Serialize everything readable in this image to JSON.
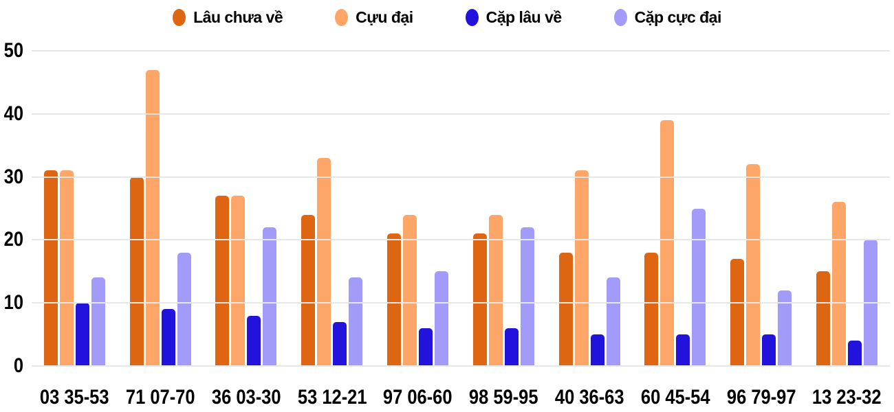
{
  "chart_data": {
    "type": "bar",
    "title": "",
    "categories": [
      "03 35-53",
      "71 07-70",
      "36 03-30",
      "53 12-21",
      "97 06-60",
      "98 59-95",
      "40 36-63",
      "60 45-54",
      "96 79-97",
      "13 23-32"
    ],
    "series": [
      {
        "name": "Lâu chưa về",
        "color": "#DE6512",
        "values": [
          31,
          30,
          27,
          24,
          21,
          21,
          18,
          18,
          17,
          15
        ]
      },
      {
        "name": "Cựu đại",
        "color": "#FDA667",
        "values": [
          31,
          47,
          27,
          33,
          24,
          24,
          31,
          39,
          32,
          26
        ]
      },
      {
        "name": "Cặp lâu về",
        "color": "#2213DC",
        "values": [
          10,
          9,
          8,
          7,
          6,
          6,
          5,
          5,
          5,
          4
        ]
      },
      {
        "name": "Cặp cực đại",
        "color": "#A39BFA",
        "values": [
          14,
          18,
          22,
          14,
          15,
          22,
          14,
          25,
          12,
          20
        ]
      }
    ],
    "xlabel": "",
    "ylabel": "",
    "ylim": [
      0,
      50
    ],
    "y_ticks": [
      0,
      10,
      20,
      30,
      40,
      50
    ],
    "grid": true,
    "grid_color": "#e7e7e7",
    "background_color": "#ffffff",
    "text_color": "#000000",
    "legend_position": "top"
  }
}
